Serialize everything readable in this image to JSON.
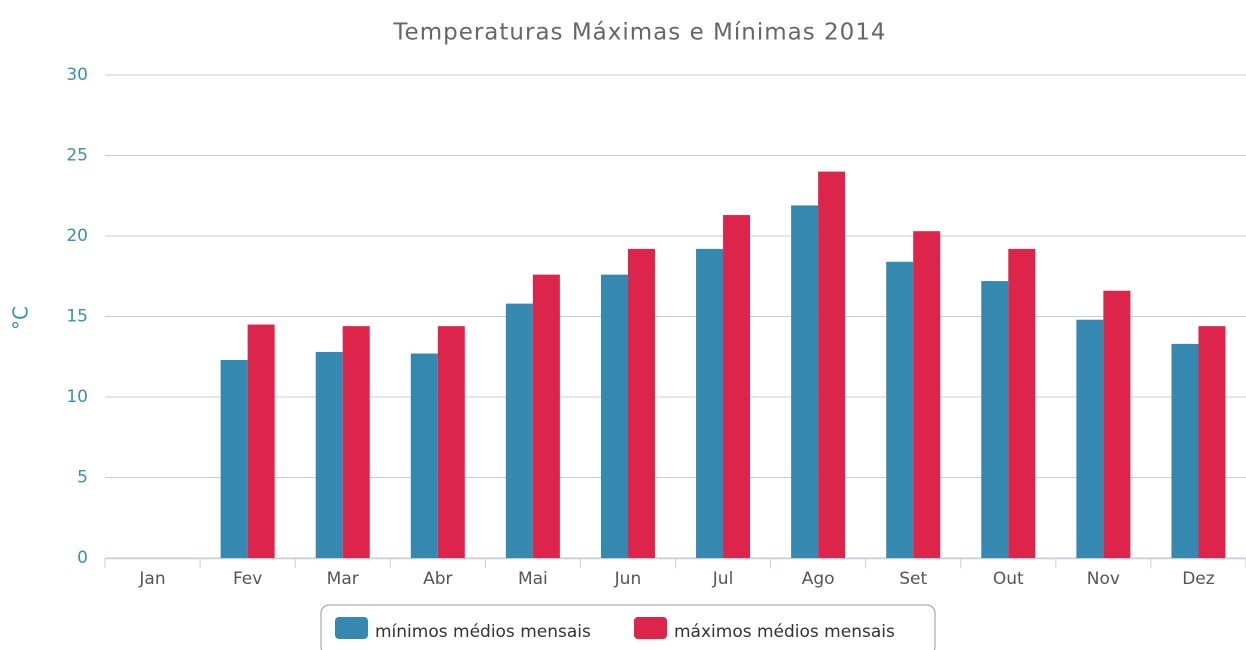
{
  "chart_data": {
    "type": "bar",
    "title": "Temperaturas Máximas e Mínimas 2014",
    "y_label": "°C",
    "categories": [
      "Jan",
      "Fev",
      "Mar",
      "Abr",
      "Mai",
      "Jun",
      "Jul",
      "Ago",
      "Set",
      "Out",
      "Nov",
      "Dez"
    ],
    "series": [
      {
        "name": "mínimos médios mensais",
        "color": "#3588b0",
        "values": [
          null,
          12.3,
          12.8,
          12.7,
          15.8,
          17.6,
          19.2,
          21.9,
          18.4,
          17.2,
          14.8,
          13.3
        ]
      },
      {
        "name": "máximos médios mensais",
        "color": "#dd244b",
        "values": [
          null,
          14.5,
          14.4,
          14.4,
          17.6,
          19.2,
          21.3,
          24.0,
          20.3,
          19.2,
          16.6,
          14.4
        ]
      }
    ],
    "ylim": [
      0,
      30
    ],
    "yticks": [
      0,
      5,
      10,
      15,
      20,
      25,
      30
    ],
    "grid": true,
    "legend": "bottom"
  }
}
